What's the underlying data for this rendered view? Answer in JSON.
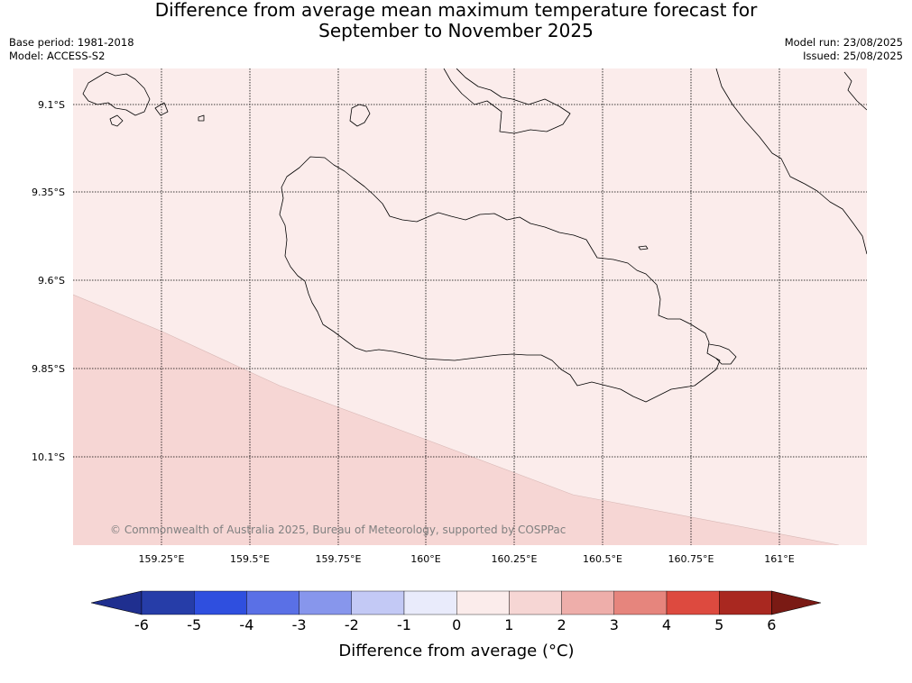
{
  "title_line1": "Difference from average mean maximum temperature forecast for",
  "title_line2": "September to November 2025",
  "base_period": "Base period: 1981-2018",
  "model": "Model: ACCESS-S2",
  "model_run": "Model run: 23/08/2025",
  "issued": "Issued: 25/08/2025",
  "copyright": "© Commonwealth of Australia 2025, Bureau of Meteorology, supported by COSPPac",
  "map": {
    "lat_labels": [
      "9.1°S",
      "9.35°S",
      "9.6°S",
      "9.85°S",
      "10.1°S"
    ],
    "lon_labels": [
      "159.25°E",
      "159.5°E",
      "159.75°E",
      "160°E",
      "160.25°E",
      "160.5°E",
      "160.75°E",
      "161°E"
    ],
    "fill_colors": {
      "anomaly_0_to_1": "#fbeceb",
      "anomaly_1_to_2": "#f6d6d4"
    }
  },
  "colorbar": {
    "title": "Difference from average (°C)",
    "ticks": [
      "-6",
      "-5",
      "-4",
      "-3",
      "-2",
      "-1",
      "0",
      "1",
      "2",
      "3",
      "4",
      "5",
      "6"
    ],
    "colors": [
      "#1f2f8f",
      "#263da8",
      "#2f4fdf",
      "#5a70e6",
      "#8796ec",
      "#c3c9f5",
      "#e9ebfb",
      "#fbeceb",
      "#f6d6d4",
      "#eeaeaa",
      "#e6857d",
      "#dd4a3f",
      "#a92820",
      "#7a1a14"
    ]
  }
}
